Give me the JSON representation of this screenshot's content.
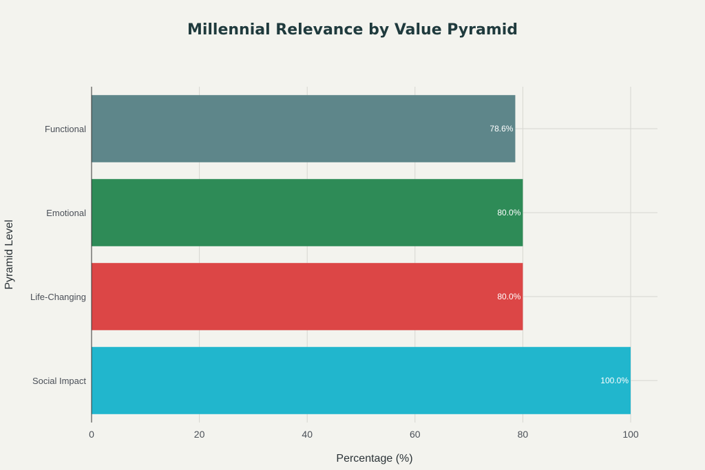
{
  "chart_data": {
    "type": "bar",
    "orientation": "horizontal",
    "title": "Millennial Relevance by Value Pyramid",
    "xlabel": "Percentage (%)",
    "ylabel": "Pyramid Level",
    "categories": [
      "Functional",
      "Emotional",
      "Life-Changing",
      "Social Impact"
    ],
    "values": [
      78.6,
      80.0,
      80.0,
      100.0
    ],
    "data_labels": [
      "78.6%",
      "80.0%",
      "80.0%",
      "100.0%"
    ],
    "colors": [
      "#5e868a",
      "#2e8b57",
      "#dc4646",
      "#21b6cd"
    ],
    "xlim": [
      0,
      105
    ],
    "xticks": [
      0,
      20,
      40,
      60,
      80,
      100
    ],
    "xtick_labels": [
      "0",
      "20",
      "40",
      "60",
      "80",
      "100"
    ],
    "grid": true,
    "legend": "none"
  }
}
